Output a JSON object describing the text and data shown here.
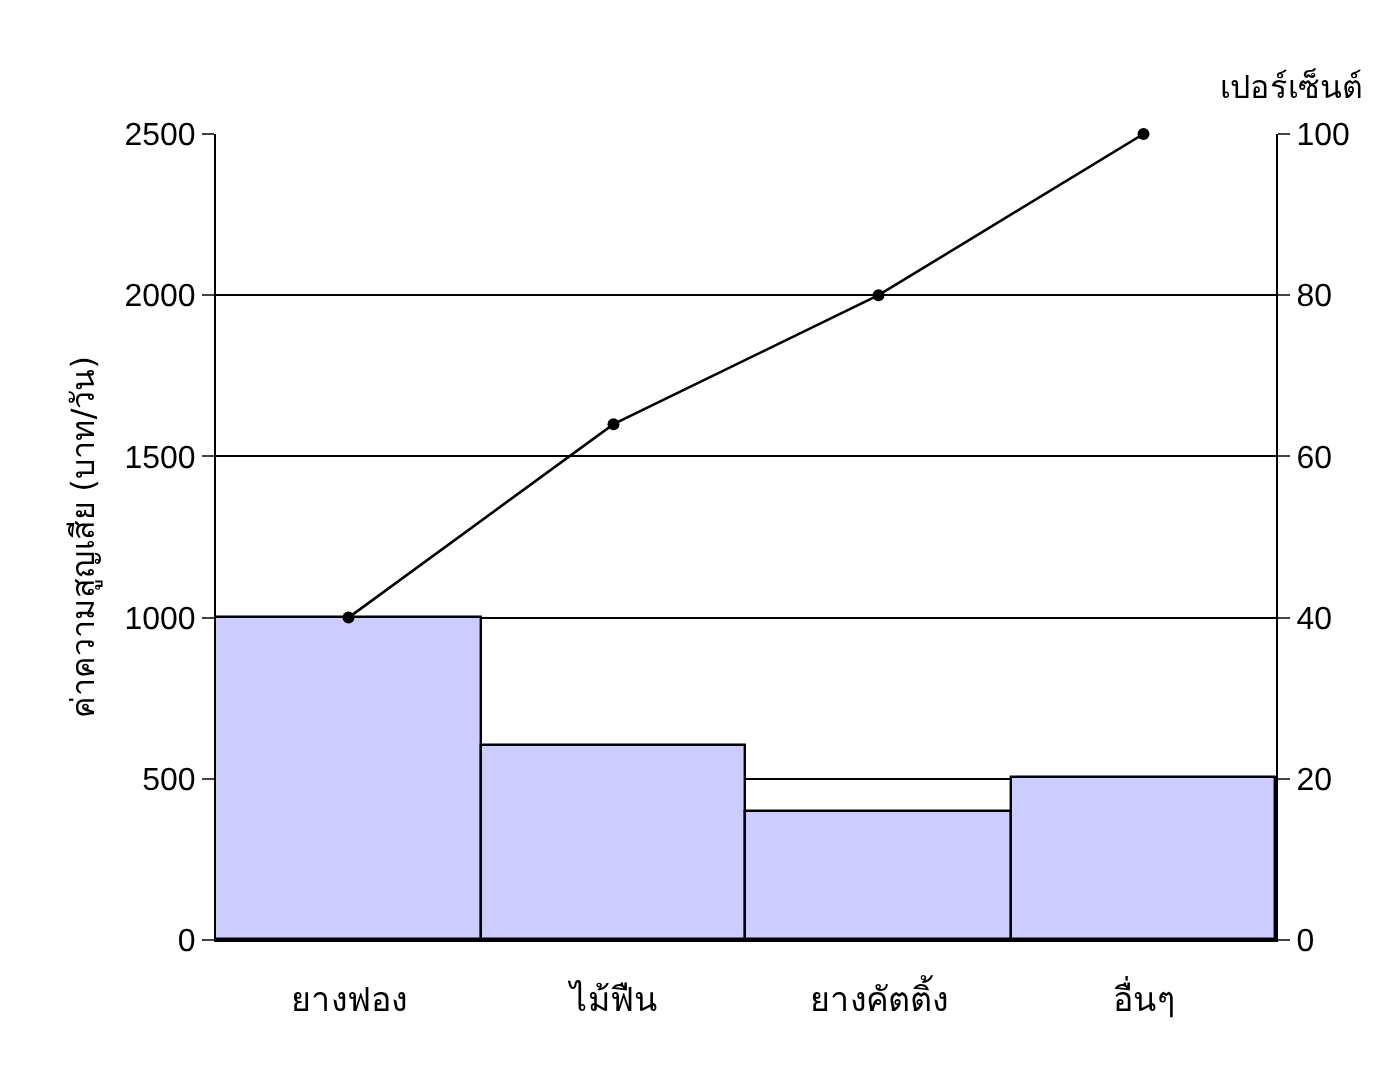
{
  "chart_data": {
    "type": "bar",
    "categories": [
      "ยางฟอง",
      "ไม้ฟืน",
      "ยางคัตติ้ง",
      "อื่นๆ"
    ],
    "series": [
      {
        "color": "#ccccff",
        "values": [
          1000,
          600,
          400,
          500
        ]
      },
      {
        "type": "line",
        "axis": "y2",
        "color": "#000000",
        "values": [
          40,
          64,
          80,
          100
        ],
        "marker": "circle",
        "line_style": "solid"
      }
    ],
    "ylabel": "ค่าความสูญเสีย (บาท/วัน)",
    "y2label": "เปอร์เซ็นต์",
    "ylim": [
      0,
      2500
    ],
    "yticks": [
      0,
      500,
      1000,
      1500,
      2000,
      2500
    ],
    "y2lim": [
      0,
      100
    ],
    "y2ticks": [
      0,
      20,
      40,
      60,
      80,
      100
    ],
    "grid": "y",
    "legend": false
  }
}
